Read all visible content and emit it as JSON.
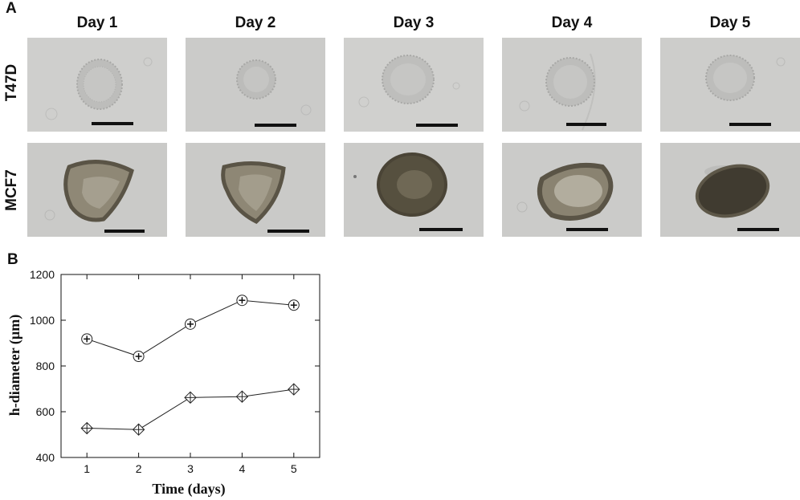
{
  "panel_a": {
    "letter": "A",
    "days": [
      "Day 1",
      "Day 2",
      "Day 3",
      "Day 4",
      "Day 5"
    ],
    "rows": [
      "T47D",
      "MCF7"
    ]
  },
  "panel_b": {
    "letter": "B"
  },
  "chart_data": {
    "type": "line",
    "x": [
      1,
      2,
      3,
      4,
      5
    ],
    "xlabel": "Time (days)",
    "ylabel": "h-diameter (µm)",
    "xlim": [
      0.5,
      5.5
    ],
    "ylim": [
      400,
      1200
    ],
    "xticks": [
      "1",
      "2",
      "3",
      "4",
      "5"
    ],
    "yticks": [
      "400",
      "600",
      "800",
      "1000",
      "1200"
    ],
    "grid": false,
    "series": [
      {
        "marker": "circle-plus",
        "values": [
          918,
          842,
          983,
          1087,
          1066
        ]
      },
      {
        "marker": "diamond-plus",
        "values": [
          528,
          522,
          662,
          666,
          698
        ]
      }
    ]
  }
}
